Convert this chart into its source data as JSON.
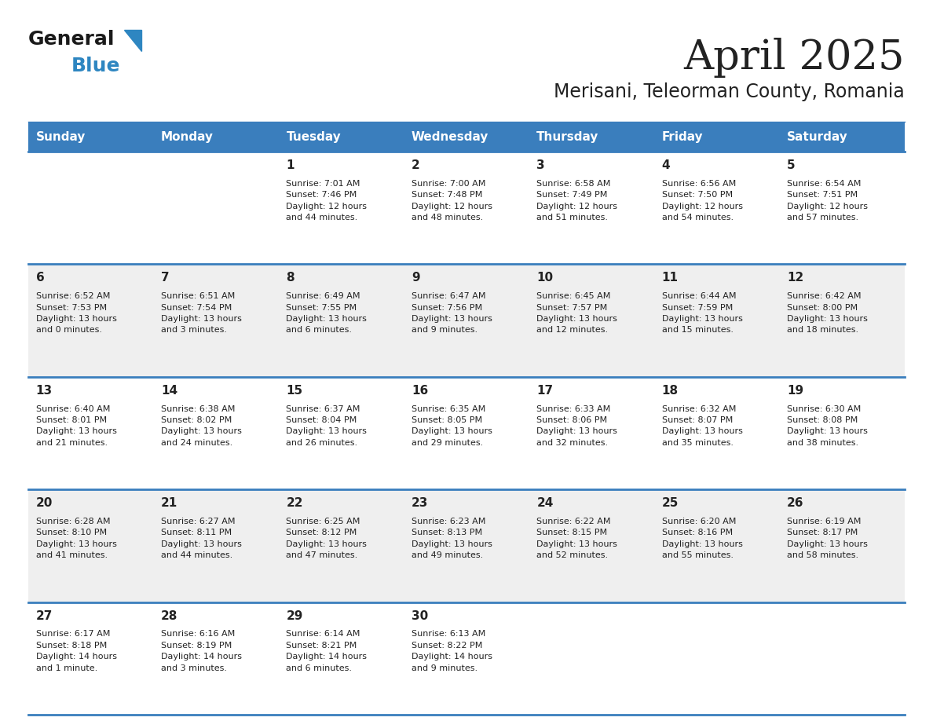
{
  "title": "April 2025",
  "subtitle": "Merisani, Teleorman County, Romania",
  "days_of_week": [
    "Sunday",
    "Monday",
    "Tuesday",
    "Wednesday",
    "Thursday",
    "Friday",
    "Saturday"
  ],
  "header_bg": "#3A7EBD",
  "header_text": "#FFFFFF",
  "row_bg_white": "#FFFFFF",
  "row_bg_gray": "#EFEFEF",
  "separator_color": "#3A7EBD",
  "text_color": "#222222",
  "calendar_data": [
    [
      {
        "day": "",
        "info": ""
      },
      {
        "day": "",
        "info": ""
      },
      {
        "day": "1",
        "info": "Sunrise: 7:01 AM\nSunset: 7:46 PM\nDaylight: 12 hours\nand 44 minutes."
      },
      {
        "day": "2",
        "info": "Sunrise: 7:00 AM\nSunset: 7:48 PM\nDaylight: 12 hours\nand 48 minutes."
      },
      {
        "day": "3",
        "info": "Sunrise: 6:58 AM\nSunset: 7:49 PM\nDaylight: 12 hours\nand 51 minutes."
      },
      {
        "day": "4",
        "info": "Sunrise: 6:56 AM\nSunset: 7:50 PM\nDaylight: 12 hours\nand 54 minutes."
      },
      {
        "day": "5",
        "info": "Sunrise: 6:54 AM\nSunset: 7:51 PM\nDaylight: 12 hours\nand 57 minutes."
      }
    ],
    [
      {
        "day": "6",
        "info": "Sunrise: 6:52 AM\nSunset: 7:53 PM\nDaylight: 13 hours\nand 0 minutes."
      },
      {
        "day": "7",
        "info": "Sunrise: 6:51 AM\nSunset: 7:54 PM\nDaylight: 13 hours\nand 3 minutes."
      },
      {
        "day": "8",
        "info": "Sunrise: 6:49 AM\nSunset: 7:55 PM\nDaylight: 13 hours\nand 6 minutes."
      },
      {
        "day": "9",
        "info": "Sunrise: 6:47 AM\nSunset: 7:56 PM\nDaylight: 13 hours\nand 9 minutes."
      },
      {
        "day": "10",
        "info": "Sunrise: 6:45 AM\nSunset: 7:57 PM\nDaylight: 13 hours\nand 12 minutes."
      },
      {
        "day": "11",
        "info": "Sunrise: 6:44 AM\nSunset: 7:59 PM\nDaylight: 13 hours\nand 15 minutes."
      },
      {
        "day": "12",
        "info": "Sunrise: 6:42 AM\nSunset: 8:00 PM\nDaylight: 13 hours\nand 18 minutes."
      }
    ],
    [
      {
        "day": "13",
        "info": "Sunrise: 6:40 AM\nSunset: 8:01 PM\nDaylight: 13 hours\nand 21 minutes."
      },
      {
        "day": "14",
        "info": "Sunrise: 6:38 AM\nSunset: 8:02 PM\nDaylight: 13 hours\nand 24 minutes."
      },
      {
        "day": "15",
        "info": "Sunrise: 6:37 AM\nSunset: 8:04 PM\nDaylight: 13 hours\nand 26 minutes."
      },
      {
        "day": "16",
        "info": "Sunrise: 6:35 AM\nSunset: 8:05 PM\nDaylight: 13 hours\nand 29 minutes."
      },
      {
        "day": "17",
        "info": "Sunrise: 6:33 AM\nSunset: 8:06 PM\nDaylight: 13 hours\nand 32 minutes."
      },
      {
        "day": "18",
        "info": "Sunrise: 6:32 AM\nSunset: 8:07 PM\nDaylight: 13 hours\nand 35 minutes."
      },
      {
        "day": "19",
        "info": "Sunrise: 6:30 AM\nSunset: 8:08 PM\nDaylight: 13 hours\nand 38 minutes."
      }
    ],
    [
      {
        "day": "20",
        "info": "Sunrise: 6:28 AM\nSunset: 8:10 PM\nDaylight: 13 hours\nand 41 minutes."
      },
      {
        "day": "21",
        "info": "Sunrise: 6:27 AM\nSunset: 8:11 PM\nDaylight: 13 hours\nand 44 minutes."
      },
      {
        "day": "22",
        "info": "Sunrise: 6:25 AM\nSunset: 8:12 PM\nDaylight: 13 hours\nand 47 minutes."
      },
      {
        "day": "23",
        "info": "Sunrise: 6:23 AM\nSunset: 8:13 PM\nDaylight: 13 hours\nand 49 minutes."
      },
      {
        "day": "24",
        "info": "Sunrise: 6:22 AM\nSunset: 8:15 PM\nDaylight: 13 hours\nand 52 minutes."
      },
      {
        "day": "25",
        "info": "Sunrise: 6:20 AM\nSunset: 8:16 PM\nDaylight: 13 hours\nand 55 minutes."
      },
      {
        "day": "26",
        "info": "Sunrise: 6:19 AM\nSunset: 8:17 PM\nDaylight: 13 hours\nand 58 minutes."
      }
    ],
    [
      {
        "day": "27",
        "info": "Sunrise: 6:17 AM\nSunset: 8:18 PM\nDaylight: 14 hours\nand 1 minute."
      },
      {
        "day": "28",
        "info": "Sunrise: 6:16 AM\nSunset: 8:19 PM\nDaylight: 14 hours\nand 3 minutes."
      },
      {
        "day": "29",
        "info": "Sunrise: 6:14 AM\nSunset: 8:21 PM\nDaylight: 14 hours\nand 6 minutes."
      },
      {
        "day": "30",
        "info": "Sunrise: 6:13 AM\nSunset: 8:22 PM\nDaylight: 14 hours\nand 9 minutes."
      },
      {
        "day": "",
        "info": ""
      },
      {
        "day": "",
        "info": ""
      },
      {
        "day": "",
        "info": ""
      }
    ]
  ],
  "logo_color_general": "#1a1a1a",
  "logo_color_blue": "#2E86C1",
  "title_fontsize": 38,
  "subtitle_fontsize": 17,
  "header_fontsize": 11,
  "day_number_fontsize": 11,
  "info_fontsize": 8
}
